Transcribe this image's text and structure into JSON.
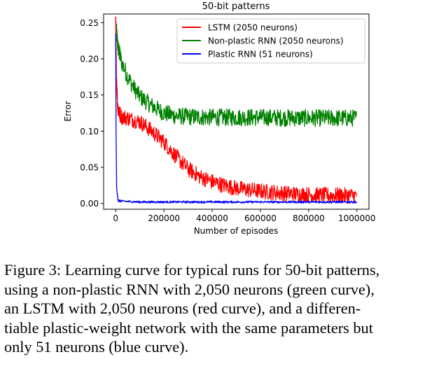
{
  "chart_data": {
    "type": "line",
    "title": "50-bit patterns",
    "xlabel": "Number of episodes",
    "ylabel": "Error",
    "xlim": [
      -50000,
      1050000
    ],
    "ylim": [
      -0.008,
      0.262
    ],
    "xticks": [
      0,
      200000,
      400000,
      600000,
      800000,
      1000000
    ],
    "xtick_labels": [
      "0",
      "200000",
      "400000",
      "600000",
      "800000",
      "1000000"
    ],
    "yticks": [
      0.0,
      0.05,
      0.1,
      0.15,
      0.2,
      0.25
    ],
    "ytick_labels": [
      "0.00",
      "0.05",
      "0.10",
      "0.15",
      "0.20",
      "0.25"
    ],
    "grid": false,
    "legend_position": "top-right",
    "series": [
      {
        "name": "LSTM (2050 neurons)",
        "color": "#ff0000",
        "noise": 0.011,
        "x": [
          0,
          3000,
          8000,
          15000,
          25000,
          50000,
          100000,
          150000,
          200000,
          250000,
          300000,
          350000,
          400000,
          450000,
          500000,
          600000,
          700000,
          800000,
          900000,
          1000000
        ],
        "y": [
          0.258,
          0.18,
          0.135,
          0.125,
          0.12,
          0.118,
          0.113,
          0.1,
          0.085,
          0.065,
          0.048,
          0.037,
          0.03,
          0.025,
          0.021,
          0.017,
          0.014,
          0.012,
          0.011,
          0.011
        ]
      },
      {
        "name": "Non-plastic RNN (2050 neurons)",
        "color": "#008000",
        "noise": 0.012,
        "x": [
          0,
          3000,
          10000,
          25000,
          50000,
          75000,
          100000,
          150000,
          200000,
          250000,
          300000,
          400000,
          500000,
          600000,
          800000,
          1000000
        ],
        "y": [
          0.258,
          0.238,
          0.215,
          0.195,
          0.175,
          0.16,
          0.148,
          0.135,
          0.125,
          0.121,
          0.12,
          0.119,
          0.119,
          0.119,
          0.118,
          0.118
        ]
      },
      {
        "name": "Plastic RNN (51 neurons)",
        "color": "#0000ff",
        "noise": 0.0015,
        "x": [
          0,
          1500,
          4000,
          10000,
          30000,
          100000,
          500000,
          1000000
        ],
        "y": [
          0.235,
          0.1,
          0.02,
          0.004,
          0.003,
          0.002,
          0.002,
          0.002
        ]
      }
    ]
  },
  "caption": {
    "lines": [
      "Figure 3: Learning curve for typical runs for 50-bit patterns,",
      "using a non-plastic RNN with 2,050 neurons (green curve),",
      "an LSTM with 2,050 neurons (red curve), and a differen-",
      "tiable plastic-weight network with the same parameters but",
      "only 51 neurons (blue curve)."
    ]
  }
}
